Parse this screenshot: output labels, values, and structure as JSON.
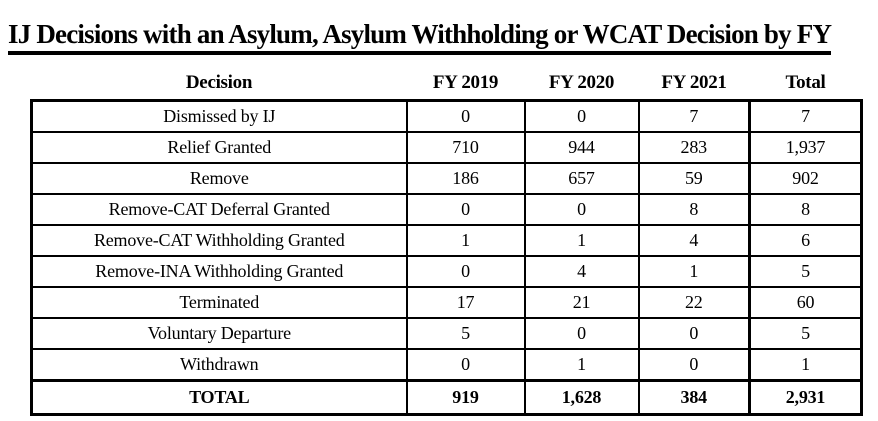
{
  "title": "IJ Decisions with an Asylum, Asylum Withholding or WCAT Decision by FY",
  "table": {
    "columns": [
      "Decision",
      "FY 2019",
      "FY 2020",
      "FY 2021",
      "Total"
    ],
    "rows": [
      [
        "Dismissed by IJ",
        "0",
        "0",
        "7",
        "7"
      ],
      [
        "Relief Granted",
        "710",
        "944",
        "283",
        "1,937"
      ],
      [
        "Remove",
        "186",
        "657",
        "59",
        "902"
      ],
      [
        "Remove-CAT Deferral Granted",
        "0",
        "0",
        "8",
        "8"
      ],
      [
        "Remove-CAT Withholding Granted",
        "1",
        "1",
        "4",
        "6"
      ],
      [
        "Remove-INA Withholding Granted",
        "0",
        "4",
        "1",
        "5"
      ],
      [
        "Terminated",
        "17",
        "21",
        "22",
        "60"
      ],
      [
        "Voluntary Departure",
        "5",
        "0",
        "0",
        "5"
      ],
      [
        "Withdrawn",
        "0",
        "1",
        "0",
        "1"
      ]
    ],
    "total_row": [
      "TOTAL",
      "919",
      "1,628",
      "384",
      "2,931"
    ]
  },
  "colors": {
    "text": "#000000",
    "background": "#ffffff",
    "border": "#000000"
  }
}
